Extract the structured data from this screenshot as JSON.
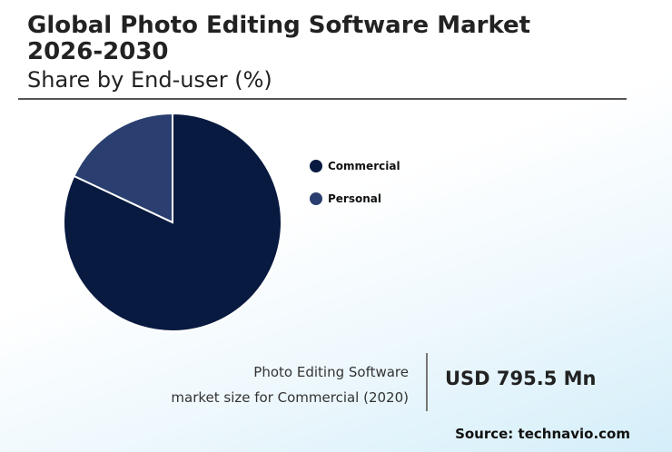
{
  "header": {
    "title": "Global Photo Editing Software Market 2026-2030",
    "subtitle": "Share by End-user (%)"
  },
  "chart_data": {
    "type": "pie",
    "categories": [
      "Commercial",
      "Personal"
    ],
    "values": [
      82,
      18
    ],
    "colors": [
      "#081a40",
      "#2a3f6f"
    ],
    "legend_position": "right"
  },
  "stat": {
    "caption_line1": "Photo Editing Software",
    "caption_line2": "market size for Commercial (2020)",
    "value": "USD 795.5 Mn"
  },
  "source": "Source: technavio.com"
}
